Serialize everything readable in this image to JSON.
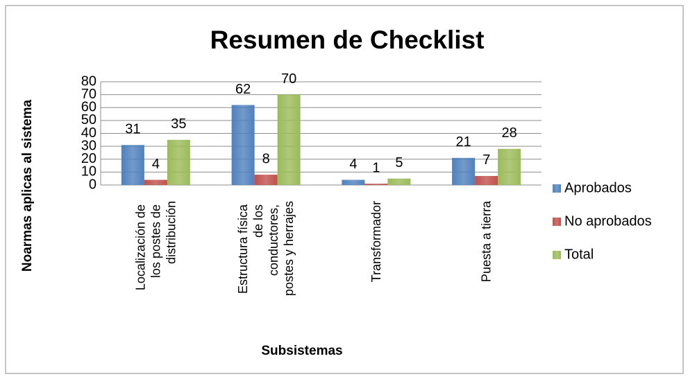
{
  "chart_data": {
    "type": "bar",
    "title": "Resumen de Checklist",
    "x_label": "Subsistemas",
    "y_label": "Noarmas aplicas al sistema",
    "categories": [
      "Localización de los postes de distribución",
      "Estructura física de los conductores, postes y herrajes",
      "Transformador",
      "Puesta a tierra"
    ],
    "series": [
      {
        "name": "Aprobados",
        "color": "#4f81bd",
        "values": [
          31,
          62,
          4,
          21
        ]
      },
      {
        "name": "No aprobados",
        "color": "#c0504d",
        "values": [
          4,
          8,
          1,
          7
        ]
      },
      {
        "name": "Total",
        "color": "#9bbb59",
        "values": [
          35,
          70,
          5,
          28
        ]
      }
    ],
    "ylim": [
      0,
      80
    ],
    "yticks": [
      0,
      10,
      20,
      30,
      40,
      50,
      60,
      70,
      80
    ],
    "grid": true,
    "legend": "right"
  }
}
